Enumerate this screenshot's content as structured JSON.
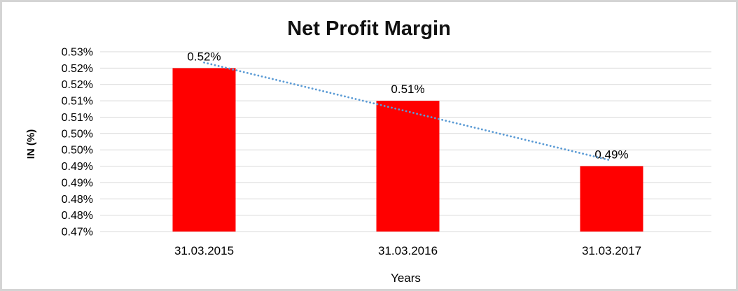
{
  "chart_data": {
    "type": "bar",
    "title": "Net Profit Margin",
    "xlabel": "Years",
    "ylabel": "IN (%)",
    "categories": [
      "31.03.2015",
      "31.03.2016",
      "31.03.2017"
    ],
    "values": [
      0.52,
      0.51,
      0.49
    ],
    "data_labels": [
      "0.52%",
      "0.51%",
      "0.49%"
    ],
    "unit": "percent",
    "ylim": [
      0.47,
      0.525
    ],
    "y_tick_labels": [
      "0.53%",
      "0.52%",
      "0.52%",
      "0.51%",
      "0.51%",
      "0.50%",
      "0.50%",
      "0.49%",
      "0.49%",
      "0.48%",
      "0.48%",
      "0.47%"
    ],
    "grid": true,
    "legend": "none",
    "bar_color": "#FF0000",
    "trendline": {
      "style": "dotted",
      "color": "#5B9BD5",
      "start_value": 0.5217,
      "end_value": 0.4917
    },
    "colors": {
      "gridline": "#D9D9D9",
      "text": "#000000",
      "frame_border": "#D4D4D4",
      "background": "#FFFFFF"
    }
  }
}
